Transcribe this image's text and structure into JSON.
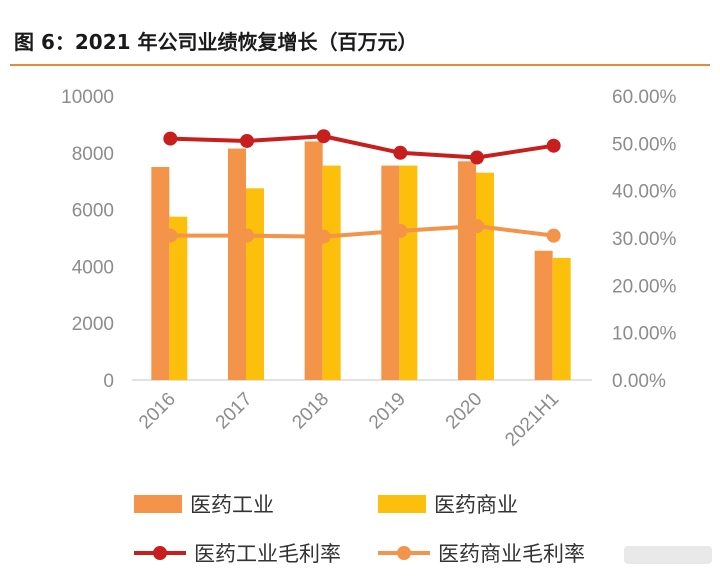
{
  "header": {
    "title": "图 6：2021 年公司业绩恢复增长（百万元）",
    "rule_color": "#e88a3c"
  },
  "chart_data": {
    "type": "bar",
    "title": "图 6：2021 年公司业绩恢复增长（百万元）",
    "categories": [
      "2016",
      "2017",
      "2018",
      "2019",
      "2020",
      "2021H1"
    ],
    "y_left": {
      "range": [
        0,
        10000
      ],
      "ticks": [
        "0",
        "2000",
        "4000",
        "6000",
        "8000",
        "10000"
      ]
    },
    "y_right": {
      "range": [
        0,
        60
      ],
      "ticks": [
        "0.00%",
        "10.00%",
        "20.00%",
        "30.00%",
        "40.00%",
        "50.00%",
        "60.00%"
      ]
    },
    "series": [
      {
        "name": "医药工业",
        "kind": "bar",
        "axis": "left",
        "color": "#f4934a",
        "values": [
          7500,
          8150,
          8400,
          7550,
          7700,
          4550
        ]
      },
      {
        "name": "医药商业",
        "kind": "bar",
        "axis": "left",
        "color": "#fbbf0c",
        "values": [
          5750,
          6750,
          7550,
          7550,
          7300,
          4300
        ]
      },
      {
        "name": "医药工业毛利率",
        "kind": "line",
        "axis": "right",
        "color": "#c81e1e",
        "unit": "%",
        "values": [
          51.0,
          50.5,
          51.5,
          48.0,
          47.0,
          49.5
        ]
      },
      {
        "name": "医药商业毛利率",
        "kind": "line",
        "axis": "right",
        "color": "#f4934a",
        "unit": "%",
        "values": [
          30.5,
          30.5,
          30.3,
          31.5,
          32.5,
          30.5
        ]
      }
    ],
    "legend_position": "bottom",
    "grid": "horizontal"
  }
}
